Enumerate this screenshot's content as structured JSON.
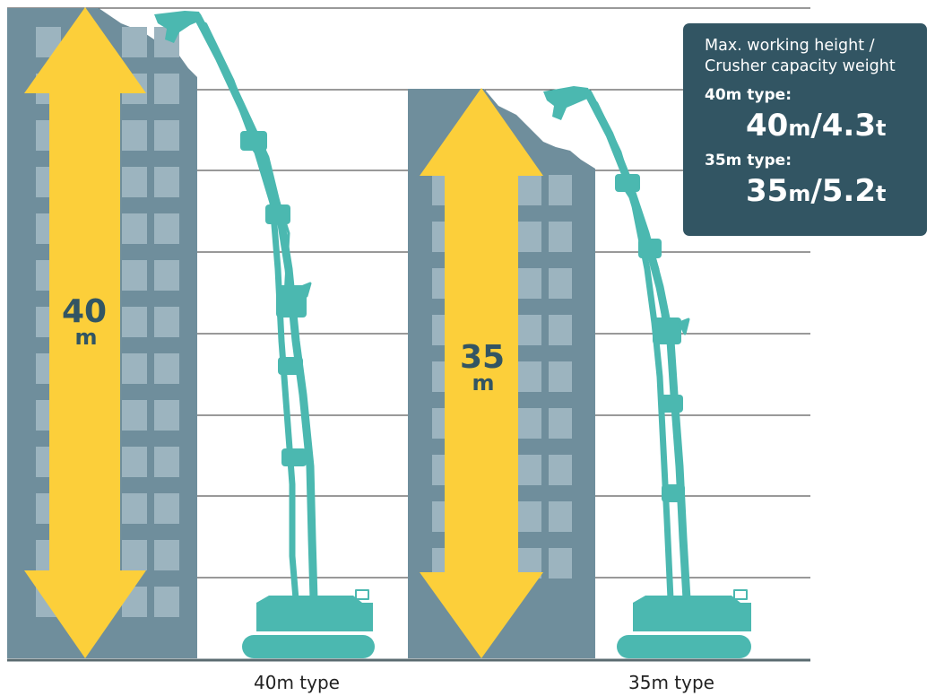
{
  "diagram": {
    "heights_m": [
      40,
      35
    ],
    "colors": {
      "building": "#6f8e9c",
      "window": "#9cb4bf",
      "arrow": "#fccf3a",
      "machine": "#4bb8b0",
      "panel": "#325563",
      "gridline": "#333333"
    }
  },
  "left": {
    "height_number": "40",
    "height_unit": "m",
    "caption": "40m type"
  },
  "right": {
    "height_number": "35",
    "height_unit": "m",
    "caption": "35m type"
  },
  "panel": {
    "heading_line1": "Max. working height /",
    "heading_line2": "Crusher capacity weight",
    "type40_label": "40m type:",
    "type40_height": "40",
    "type40_height_unit": "m",
    "type40_sep": "/",
    "type40_weight": "4.3",
    "type40_weight_unit": "t",
    "type35_label": "35m type:",
    "type35_height": "35",
    "type35_height_unit": "m",
    "type35_sep": "/",
    "type35_weight": "5.2",
    "type35_weight_unit": "t"
  }
}
